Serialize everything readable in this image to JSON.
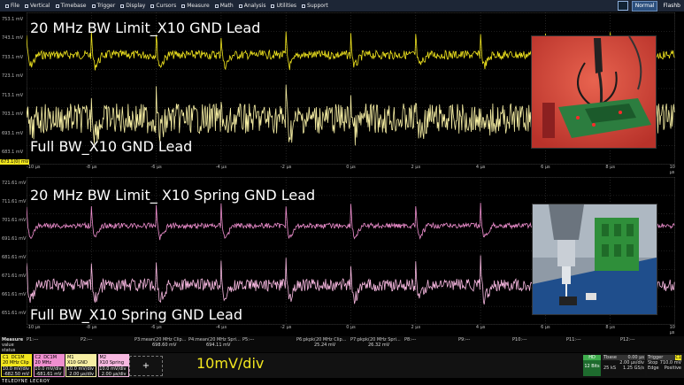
{
  "menu": [
    {
      "label": "File",
      "icon": "file-icon"
    },
    {
      "label": "Vertical",
      "icon": "vertical-icon"
    },
    {
      "label": "Timebase",
      "icon": "timebase-icon"
    },
    {
      "label": "Trigger",
      "icon": "trigger-icon"
    },
    {
      "label": "Display",
      "icon": "display-icon"
    },
    {
      "label": "Cursors",
      "icon": "cursors-icon"
    },
    {
      "label": "Measure",
      "icon": "measure-icon"
    },
    {
      "label": "Math",
      "icon": "math-icon"
    },
    {
      "label": "Analysis",
      "icon": "analysis-icon"
    },
    {
      "label": "Utilities",
      "icon": "utilities-icon"
    },
    {
      "label": "Support",
      "icon": "support-icon"
    }
  ],
  "acq": {
    "mode": "Normal",
    "sampling": "Flashb"
  },
  "colors": {
    "c1": "#f2e61f",
    "c1_light": "#f7efa4",
    "c2": "#ef8fcf",
    "c2_light": "#f7b8e0"
  },
  "grid1": {
    "ylabels": [
      "753.1 mV",
      "743.1 mV",
      "733.1 mV",
      "723.1 mV",
      "713.1 mV",
      "703.1 mV",
      "693.1 mV",
      "683.1 mV"
    ],
    "bottom_tag": "673.1(0) mV",
    "annot_top": "20 MHz BW Limit_X10 GND Lead",
    "annot_bottom": "Full BW_X10 GND Lead"
  },
  "grid2": {
    "ylabels": [
      "721.61 mV",
      "711.61 mV",
      "701.61 mV",
      "691.61 mV",
      "681.61 mV",
      "671.61 mV",
      "661.61 mV",
      "651.61 mV"
    ],
    "annot_top": "20 MHz BW Limit_ X10 Spring GND Lead",
    "annot_bottom": "Full BW_X10 Spring GND Lead"
  },
  "xlabels": [
    "-10 µs",
    "-8 µs",
    "-6 µs",
    "-4 µs",
    "-2 µs",
    "0 µs",
    "2 µs",
    "4 µs",
    "6 µs",
    "8 µs",
    "10 µs"
  ],
  "measure": {
    "rows": [
      "Measure",
      "value",
      "status"
    ],
    "params": [
      {
        "name": "P1:---",
        "val": ""
      },
      {
        "name": "P2:---",
        "val": ""
      },
      {
        "name": "P3:mean(20 MHz Clip...",
        "val": "698.60 mV"
      },
      {
        "name": "P4:mean(20 MHz Spri...",
        "val": "694.11 mV"
      },
      {
        "name": "P5:---",
        "val": ""
      },
      {
        "name": "P6:pkpk(20 MHz Clip...",
        "val": "25.24 mV"
      },
      {
        "name": "P7:pkpk(20 MHz Spri...",
        "val": "26.32 mV"
      },
      {
        "name": "P8:---",
        "val": ""
      },
      {
        "name": "P9:---",
        "val": ""
      },
      {
        "name": "P10:---",
        "val": ""
      },
      {
        "name": "P11:---",
        "val": ""
      },
      {
        "name": "P12:---",
        "val": ""
      }
    ]
  },
  "channels": [
    {
      "id": "C1",
      "tag": "DC1M",
      "title": "20 MHz Clip",
      "v1": "10.0 mV/div",
      "v2": "-682.50 mV"
    },
    {
      "id": "C2",
      "tag": "DC1M",
      "title": "20 MHz Spri...",
      "v1": "10.0 mV/div",
      "v2": "-681.61 mV"
    },
    {
      "id": "M1",
      "tag": "",
      "title": "X10 GND Lead",
      "v1": "10.0 mV/div",
      "v2": "2.00 µs/div"
    },
    {
      "id": "M2",
      "tag": "",
      "title": "X10 Spring G...",
      "v1": "10.0 mV/div",
      "v2": "2.00 µs/div"
    }
  ],
  "add_label": "+",
  "scale_text": "10mV/div",
  "timebase": {
    "bits": "HD",
    "bits2": "12 Bits",
    "tbase_label": "Tbase",
    "tbase_val": "0.00 µs",
    "tdiv": "2.00 µs/div",
    "samples": "25 kS",
    "rate": "1.25 GS/s",
    "trig_label": "Trigger",
    "trig_flags": "C1",
    "stop": "Stop",
    "stop_val": "710.0 mV",
    "edge": "Edge",
    "slope": "Positive"
  },
  "brand": "TELEDYNE LECROY"
}
